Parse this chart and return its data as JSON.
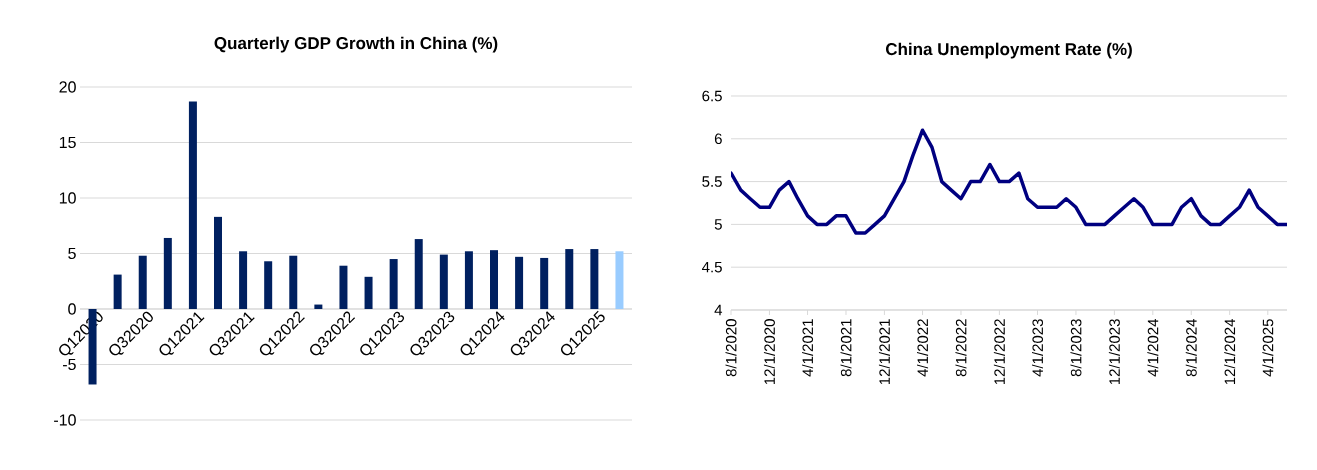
{
  "chart_data": [
    {
      "type": "bar",
      "title": "Quarterly GDP Growth in China (%)",
      "categories": [
        "Q12020",
        null,
        "Q32020",
        null,
        "Q12021",
        null,
        "Q32021",
        null,
        "Q12022",
        null,
        "Q32022",
        null,
        "Q12023",
        null,
        "Q32023",
        null,
        "Q12024",
        null,
        "Q32024",
        null,
        "Q12025",
        null
      ],
      "values": [
        -6.8,
        3.1,
        4.8,
        6.4,
        18.7,
        8.3,
        5.2,
        4.3,
        4.8,
        0.4,
        3.9,
        2.9,
        4.5,
        6.3,
        4.9,
        5.2,
        5.3,
        4.7,
        4.6,
        5.4,
        5.4,
        5.2
      ],
      "colors": [
        "#002060",
        "#002060",
        "#002060",
        "#002060",
        "#002060",
        "#002060",
        "#002060",
        "#002060",
        "#002060",
        "#002060",
        "#002060",
        "#002060",
        "#002060",
        "#002060",
        "#002060",
        "#002060",
        "#002060",
        "#002060",
        "#002060",
        "#002060",
        "#002060",
        "#99ccff"
      ],
      "ylim": [
        -10,
        20
      ],
      "yticks": [
        -10,
        -5,
        0,
        5,
        10,
        15,
        20
      ],
      "grid": "y"
    },
    {
      "type": "line",
      "title": "China Unemployment Rate (%)",
      "x": [
        "2020-08",
        "2020-09",
        "2020-10",
        "2020-11",
        "2020-12",
        "2021-01",
        "2021-02",
        "2021-03",
        "2021-04",
        "2021-05",
        "2021-06",
        "2021-07",
        "2021-08",
        "2021-09",
        "2021-10",
        "2021-11",
        "2021-12",
        "2022-01",
        "2022-02",
        "2022-03",
        "2022-04",
        "2022-05",
        "2022-06",
        "2022-07",
        "2022-08",
        "2022-09",
        "2022-10",
        "2022-11",
        "2022-12",
        "2023-01",
        "2023-02",
        "2023-03",
        "2023-04",
        "2023-05",
        "2023-06",
        "2023-07",
        "2023-08",
        "2023-09",
        "2023-10",
        "2023-11",
        "2023-12",
        "2024-01",
        "2024-02",
        "2024-03",
        "2024-04",
        "2024-05",
        "2024-06",
        "2024-07",
        "2024-08",
        "2024-09",
        "2024-10",
        "2024-11",
        "2024-12",
        "2025-01",
        "2025-02",
        "2025-03",
        "2025-04",
        "2025-05",
        "2025-06"
      ],
      "values": [
        5.6,
        5.4,
        5.3,
        5.2,
        5.2,
        5.4,
        5.5,
        5.3,
        5.1,
        5.0,
        5.0,
        5.1,
        5.1,
        4.9,
        4.9,
        5.0,
        5.1,
        5.3,
        5.5,
        5.8,
        6.1,
        5.9,
        5.5,
        5.4,
        5.3,
        5.5,
        5.5,
        5.7,
        5.5,
        5.5,
        5.6,
        5.3,
        5.2,
        5.2,
        5.2,
        5.3,
        5.2,
        5.0,
        5.0,
        5.0,
        5.1,
        5.2,
        5.3,
        5.2,
        5.0,
        5.0,
        5.0,
        5.2,
        5.3,
        5.1,
        5.0,
        5.0,
        5.1,
        5.2,
        5.4,
        5.2,
        5.1,
        5.0,
        5.0
      ],
      "color": "#000080",
      "xlim": [
        "2020-08-01",
        "2025-06-01"
      ],
      "xticks": [
        {
          "value": "2020-08-01",
          "label": "8/1/2020"
        },
        {
          "value": "2020-12-01",
          "label": "12/1/2020"
        },
        {
          "value": "2021-04-01",
          "label": "4/1/2021"
        },
        {
          "value": "2021-08-01",
          "label": "8/1/2021"
        },
        {
          "value": "2021-12-01",
          "label": "12/1/2021"
        },
        {
          "value": "2022-04-01",
          "label": "4/1/2022"
        },
        {
          "value": "2022-08-01",
          "label": "8/1/2022"
        },
        {
          "value": "2022-12-01",
          "label": "12/1/2022"
        },
        {
          "value": "2023-04-01",
          "label": "4/1/2023"
        },
        {
          "value": "2023-08-01",
          "label": "8/1/2023"
        },
        {
          "value": "2023-12-01",
          "label": "12/1/2023"
        },
        {
          "value": "2024-04-01",
          "label": "4/1/2024"
        },
        {
          "value": "2024-08-01",
          "label": "8/1/2024"
        },
        {
          "value": "2024-12-01",
          "label": "12/1/2024"
        },
        {
          "value": "2025-04-01",
          "label": "4/1/2025"
        }
      ],
      "ylim": [
        4,
        6.5
      ],
      "yticks": [
        4,
        4.5,
        5,
        5.5,
        6,
        6.5
      ],
      "grid": "y"
    }
  ]
}
